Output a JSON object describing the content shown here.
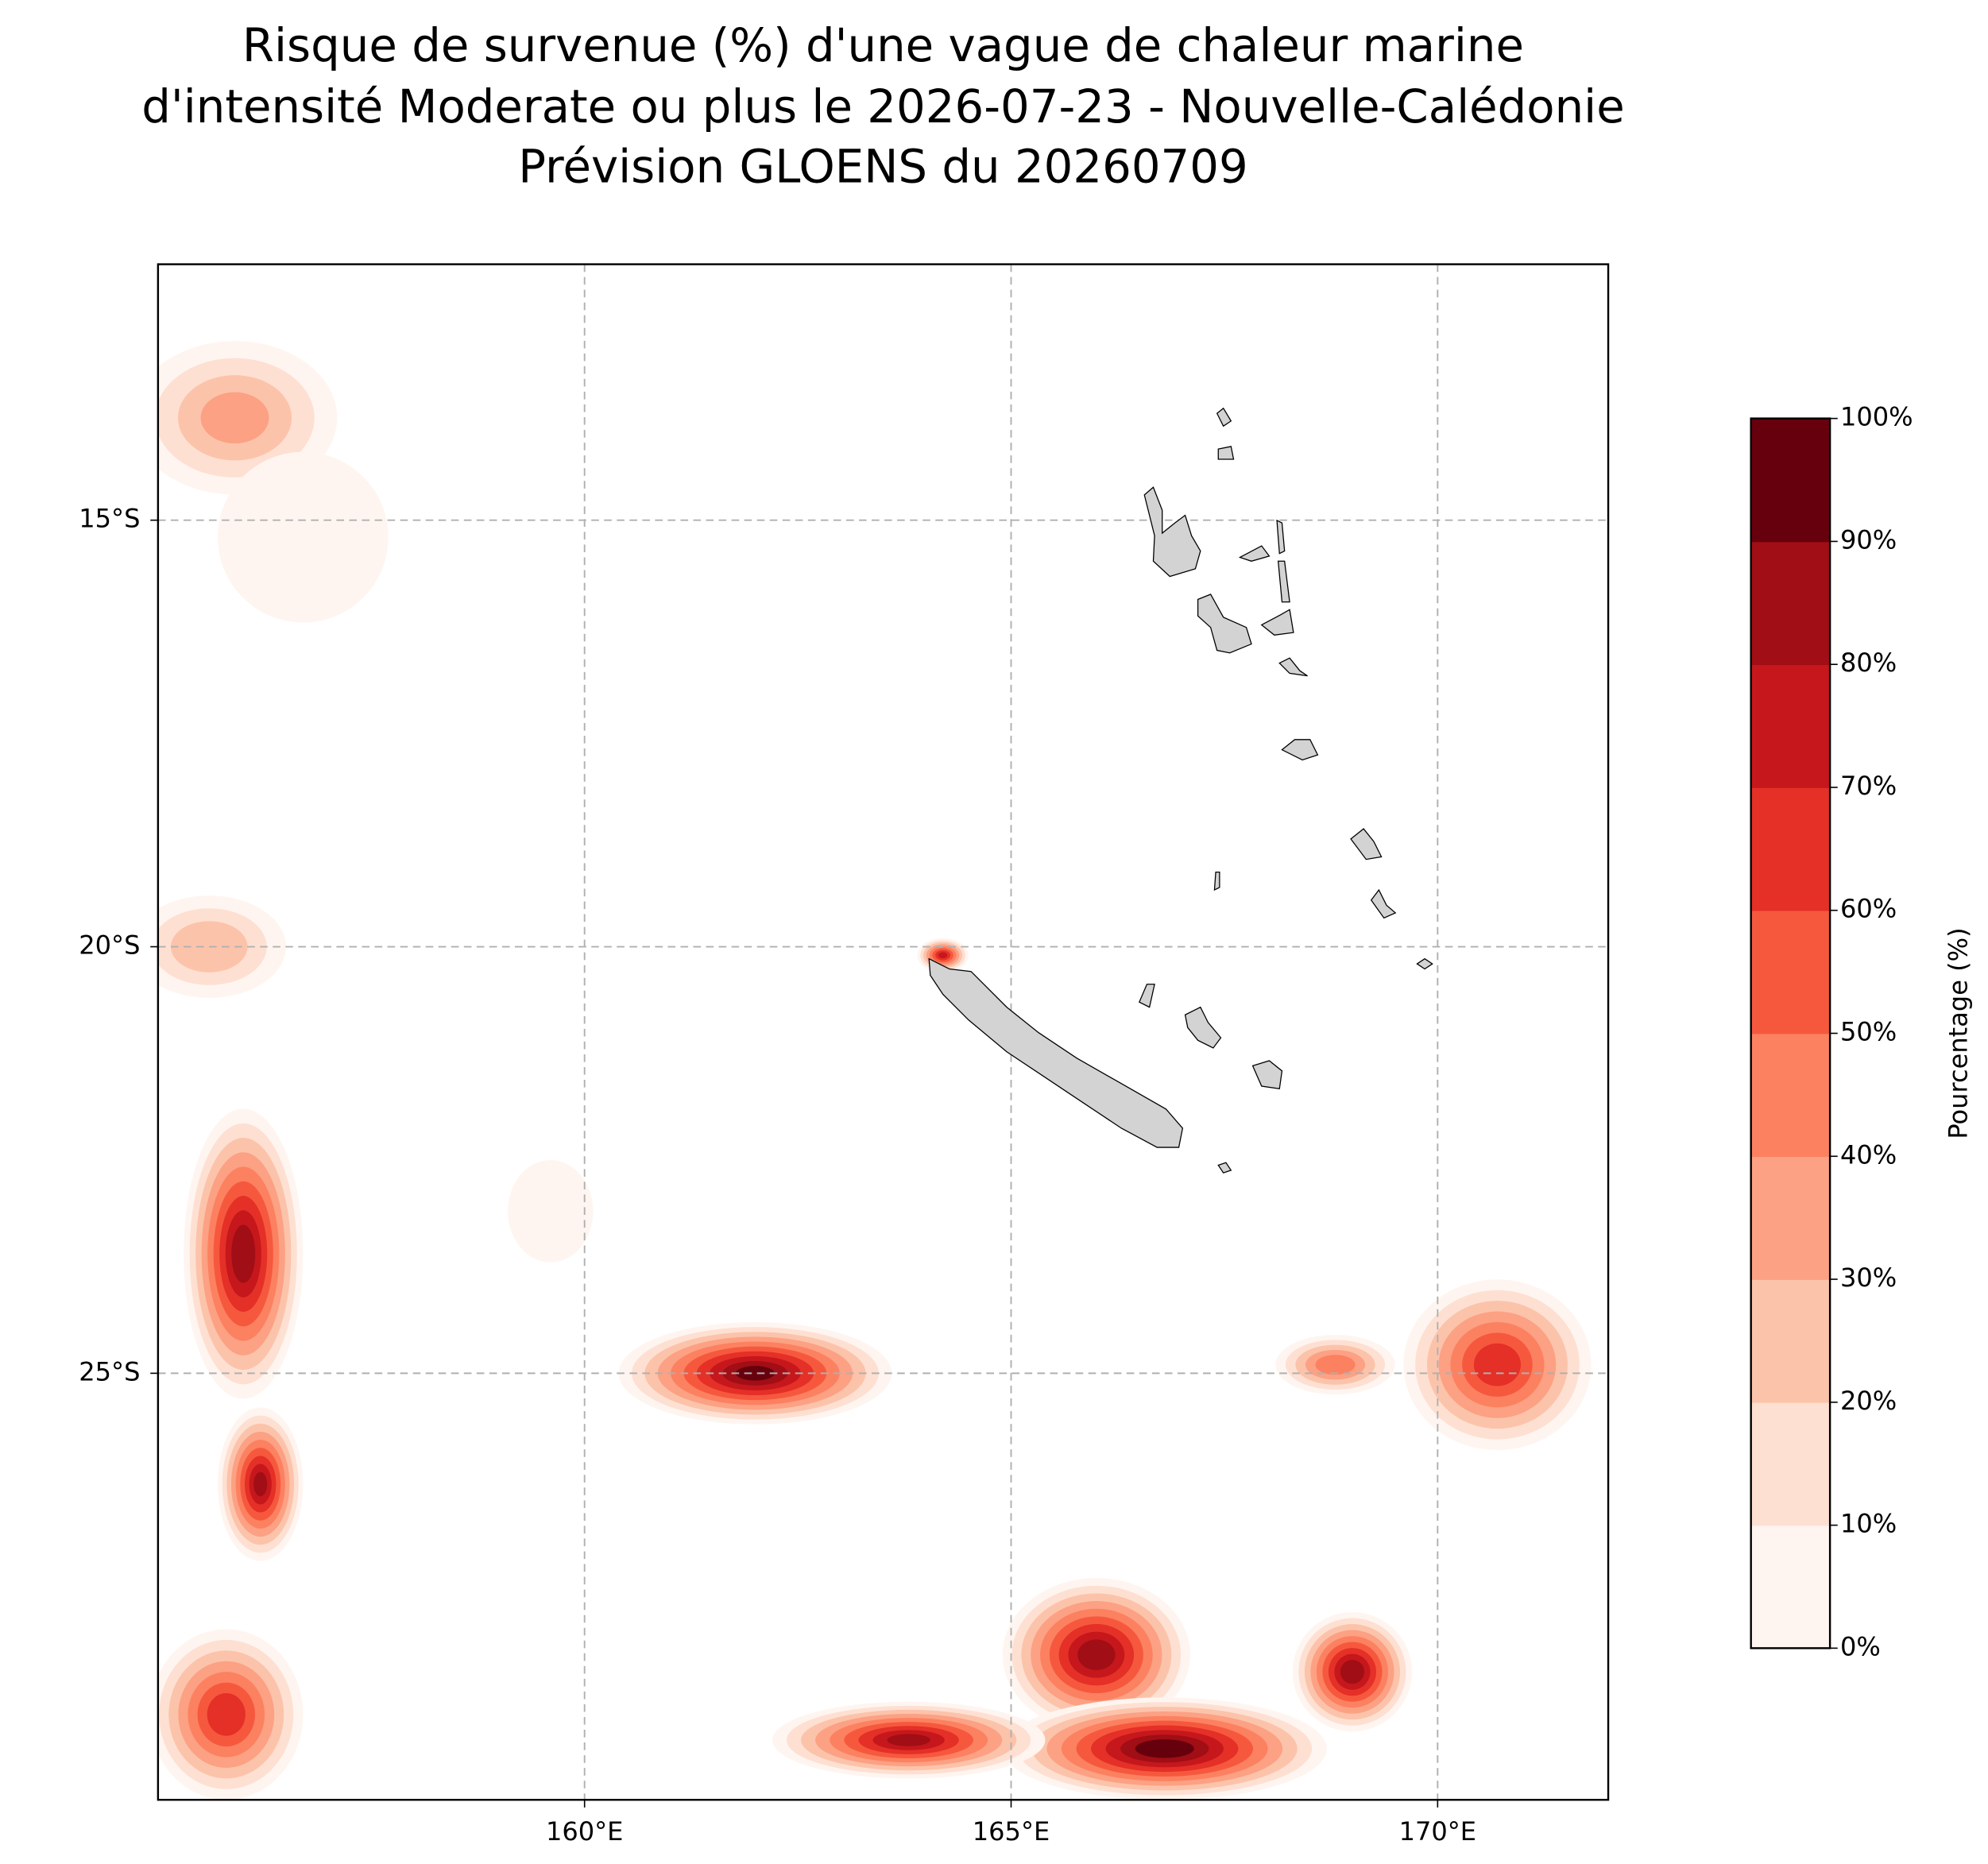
{
  "chart_data": {
    "type": "contour-map",
    "title": [
      "Risque de survenue (%) d'une vague de chaleur marine",
      "d'intensité Moderate ou plus le 2026-07-23 - Nouvelle-Calédonie",
      "Prévision GLOENS du 20260709"
    ],
    "xlim": [
      155,
      172
    ],
    "ylim": [
      -30,
      -12
    ],
    "xticks": [
      {
        "value": 160,
        "label": "160°E"
      },
      {
        "value": 165,
        "label": "165°E"
      },
      {
        "value": 170,
        "label": "170°E"
      }
    ],
    "yticks": [
      {
        "value": -15,
        "label": "15°S"
      },
      {
        "value": -20,
        "label": "20°S"
      },
      {
        "value": -25,
        "label": "25°S"
      }
    ],
    "grid": true,
    "colorbar": {
      "label": "Pourcentage (%)",
      "lim": [
        0,
        100
      ],
      "ticks": [
        {
          "value": 0,
          "label": "0%"
        },
        {
          "value": 10,
          "label": "10%"
        },
        {
          "value": 20,
          "label": "20%"
        },
        {
          "value": 30,
          "label": "30%"
        },
        {
          "value": 40,
          "label": "40%"
        },
        {
          "value": 50,
          "label": "50%"
        },
        {
          "value": 60,
          "label": "60%"
        },
        {
          "value": 70,
          "label": "70%"
        },
        {
          "value": 80,
          "label": "80%"
        },
        {
          "value": 90,
          "label": "90%"
        },
        {
          "value": 100,
          "label": "100%"
        }
      ],
      "colors": [
        "#fff5f0",
        "#fee0d2",
        "#fcc3ab",
        "#fca183",
        "#fc8161",
        "#f6583e",
        "#e43027",
        "#c5171c",
        "#a10e15",
        "#67000d"
      ]
    },
    "hotspots": [
      {
        "lon": 155.9,
        "lat": -13.8,
        "peak": 35,
        "rx": 1.2,
        "ry": 0.9
      },
      {
        "lon": 156.7,
        "lat": -15.2,
        "peak": 10,
        "rx": 1.0,
        "ry": 1.0
      },
      {
        "lon": 155.6,
        "lat": -20.0,
        "peak": 30,
        "rx": 0.9,
        "ry": 0.6
      },
      {
        "lon": 156.0,
        "lat": -23.6,
        "peak": 90,
        "rx": 0.7,
        "ry": 1.7
      },
      {
        "lon": 156.2,
        "lat": -26.3,
        "peak": 85,
        "rx": 0.5,
        "ry": 0.9
      },
      {
        "lon": 155.8,
        "lat": -29.0,
        "peak": 70,
        "rx": 0.9,
        "ry": 1.0
      },
      {
        "lon": 162.0,
        "lat": -25.0,
        "peak": 95,
        "rx": 1.6,
        "ry": 0.6
      },
      {
        "lon": 166.0,
        "lat": -28.3,
        "peak": 90,
        "rx": 1.1,
        "ry": 0.9
      },
      {
        "lon": 166.8,
        "lat": -29.4,
        "peak": 100,
        "rx": 1.9,
        "ry": 0.6
      },
      {
        "lon": 163.8,
        "lat": -29.3,
        "peak": 85,
        "rx": 1.6,
        "ry": 0.45
      },
      {
        "lon": 169.0,
        "lat": -28.5,
        "peak": 90,
        "rx": 0.7,
        "ry": 0.7
      },
      {
        "lon": 170.7,
        "lat": -24.9,
        "peak": 70,
        "rx": 1.1,
        "ry": 1.0
      },
      {
        "lon": 168.8,
        "lat": -24.9,
        "peak": 50,
        "rx": 0.7,
        "ry": 0.35
      },
      {
        "lon": 164.2,
        "lat": -20.1,
        "peak": 75,
        "rx": 0.3,
        "ry": 0.2
      },
      {
        "lon": 159.6,
        "lat": -23.1,
        "peak": 10,
        "rx": 0.5,
        "ry": 0.6
      }
    ]
  }
}
